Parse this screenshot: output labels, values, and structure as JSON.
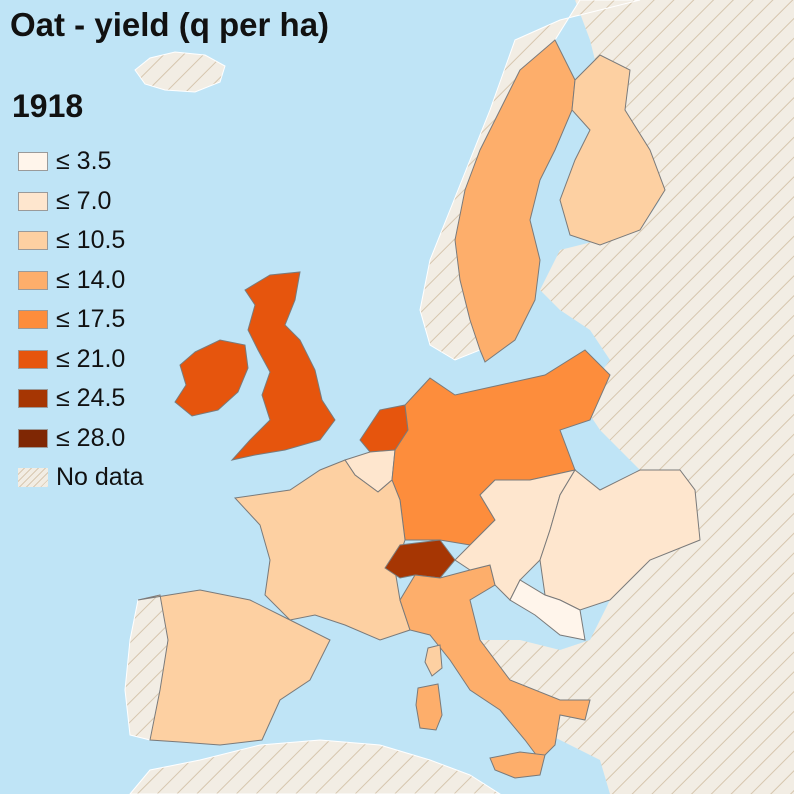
{
  "map": {
    "title": "Oat - yield (q per ha)",
    "year": "1918",
    "legend": [
      {
        "label": "≤ 3.5",
        "color": "#fff5eb"
      },
      {
        "label": "≤ 7.0",
        "color": "#fee6ce"
      },
      {
        "label": "≤ 10.5",
        "color": "#fdd0a2"
      },
      {
        "label": "≤ 14.0",
        "color": "#fdae6b"
      },
      {
        "label": "≤ 17.5",
        "color": "#fd8d3c"
      },
      {
        "label": "≤ 21.0",
        "color": "#e6550d"
      },
      {
        "label": "≤ 24.5",
        "color": "#a63603"
      },
      {
        "label": "≤ 28.0",
        "color": "#7f2704"
      },
      {
        "label": "No data",
        "color": "nodata"
      }
    ],
    "colors": {
      "sea": "#bfe4f6",
      "nodata_base": "#f2ede4",
      "nodata_hatch": "#d9c9b3",
      "border": "#7a7a7a"
    },
    "regions": [
      {
        "name": "Ireland",
        "class": "≤ 21.0"
      },
      {
        "name": "United Kingdom",
        "class": "≤ 21.0"
      },
      {
        "name": "Netherlands",
        "class": "≤ 21.0"
      },
      {
        "name": "Germany",
        "class": "≤ 17.5"
      },
      {
        "name": "Switzerland",
        "class": "≤ 24.5"
      },
      {
        "name": "Italy",
        "class": "≤ 14.0"
      },
      {
        "name": "France",
        "class": "≤ 10.5"
      },
      {
        "name": "Spain",
        "class": "≤ 10.5"
      },
      {
        "name": "Sweden",
        "class": "≤ 14.0"
      },
      {
        "name": "Finland",
        "class": "≤ 10.5"
      },
      {
        "name": "Austria",
        "class": "≤ 7.0"
      },
      {
        "name": "Hungary",
        "class": "≤ 7.0"
      },
      {
        "name": "Belgium",
        "class": "≤ 7.0"
      },
      {
        "name": "Croatia",
        "class": "≤ 3.5"
      }
    ]
  }
}
